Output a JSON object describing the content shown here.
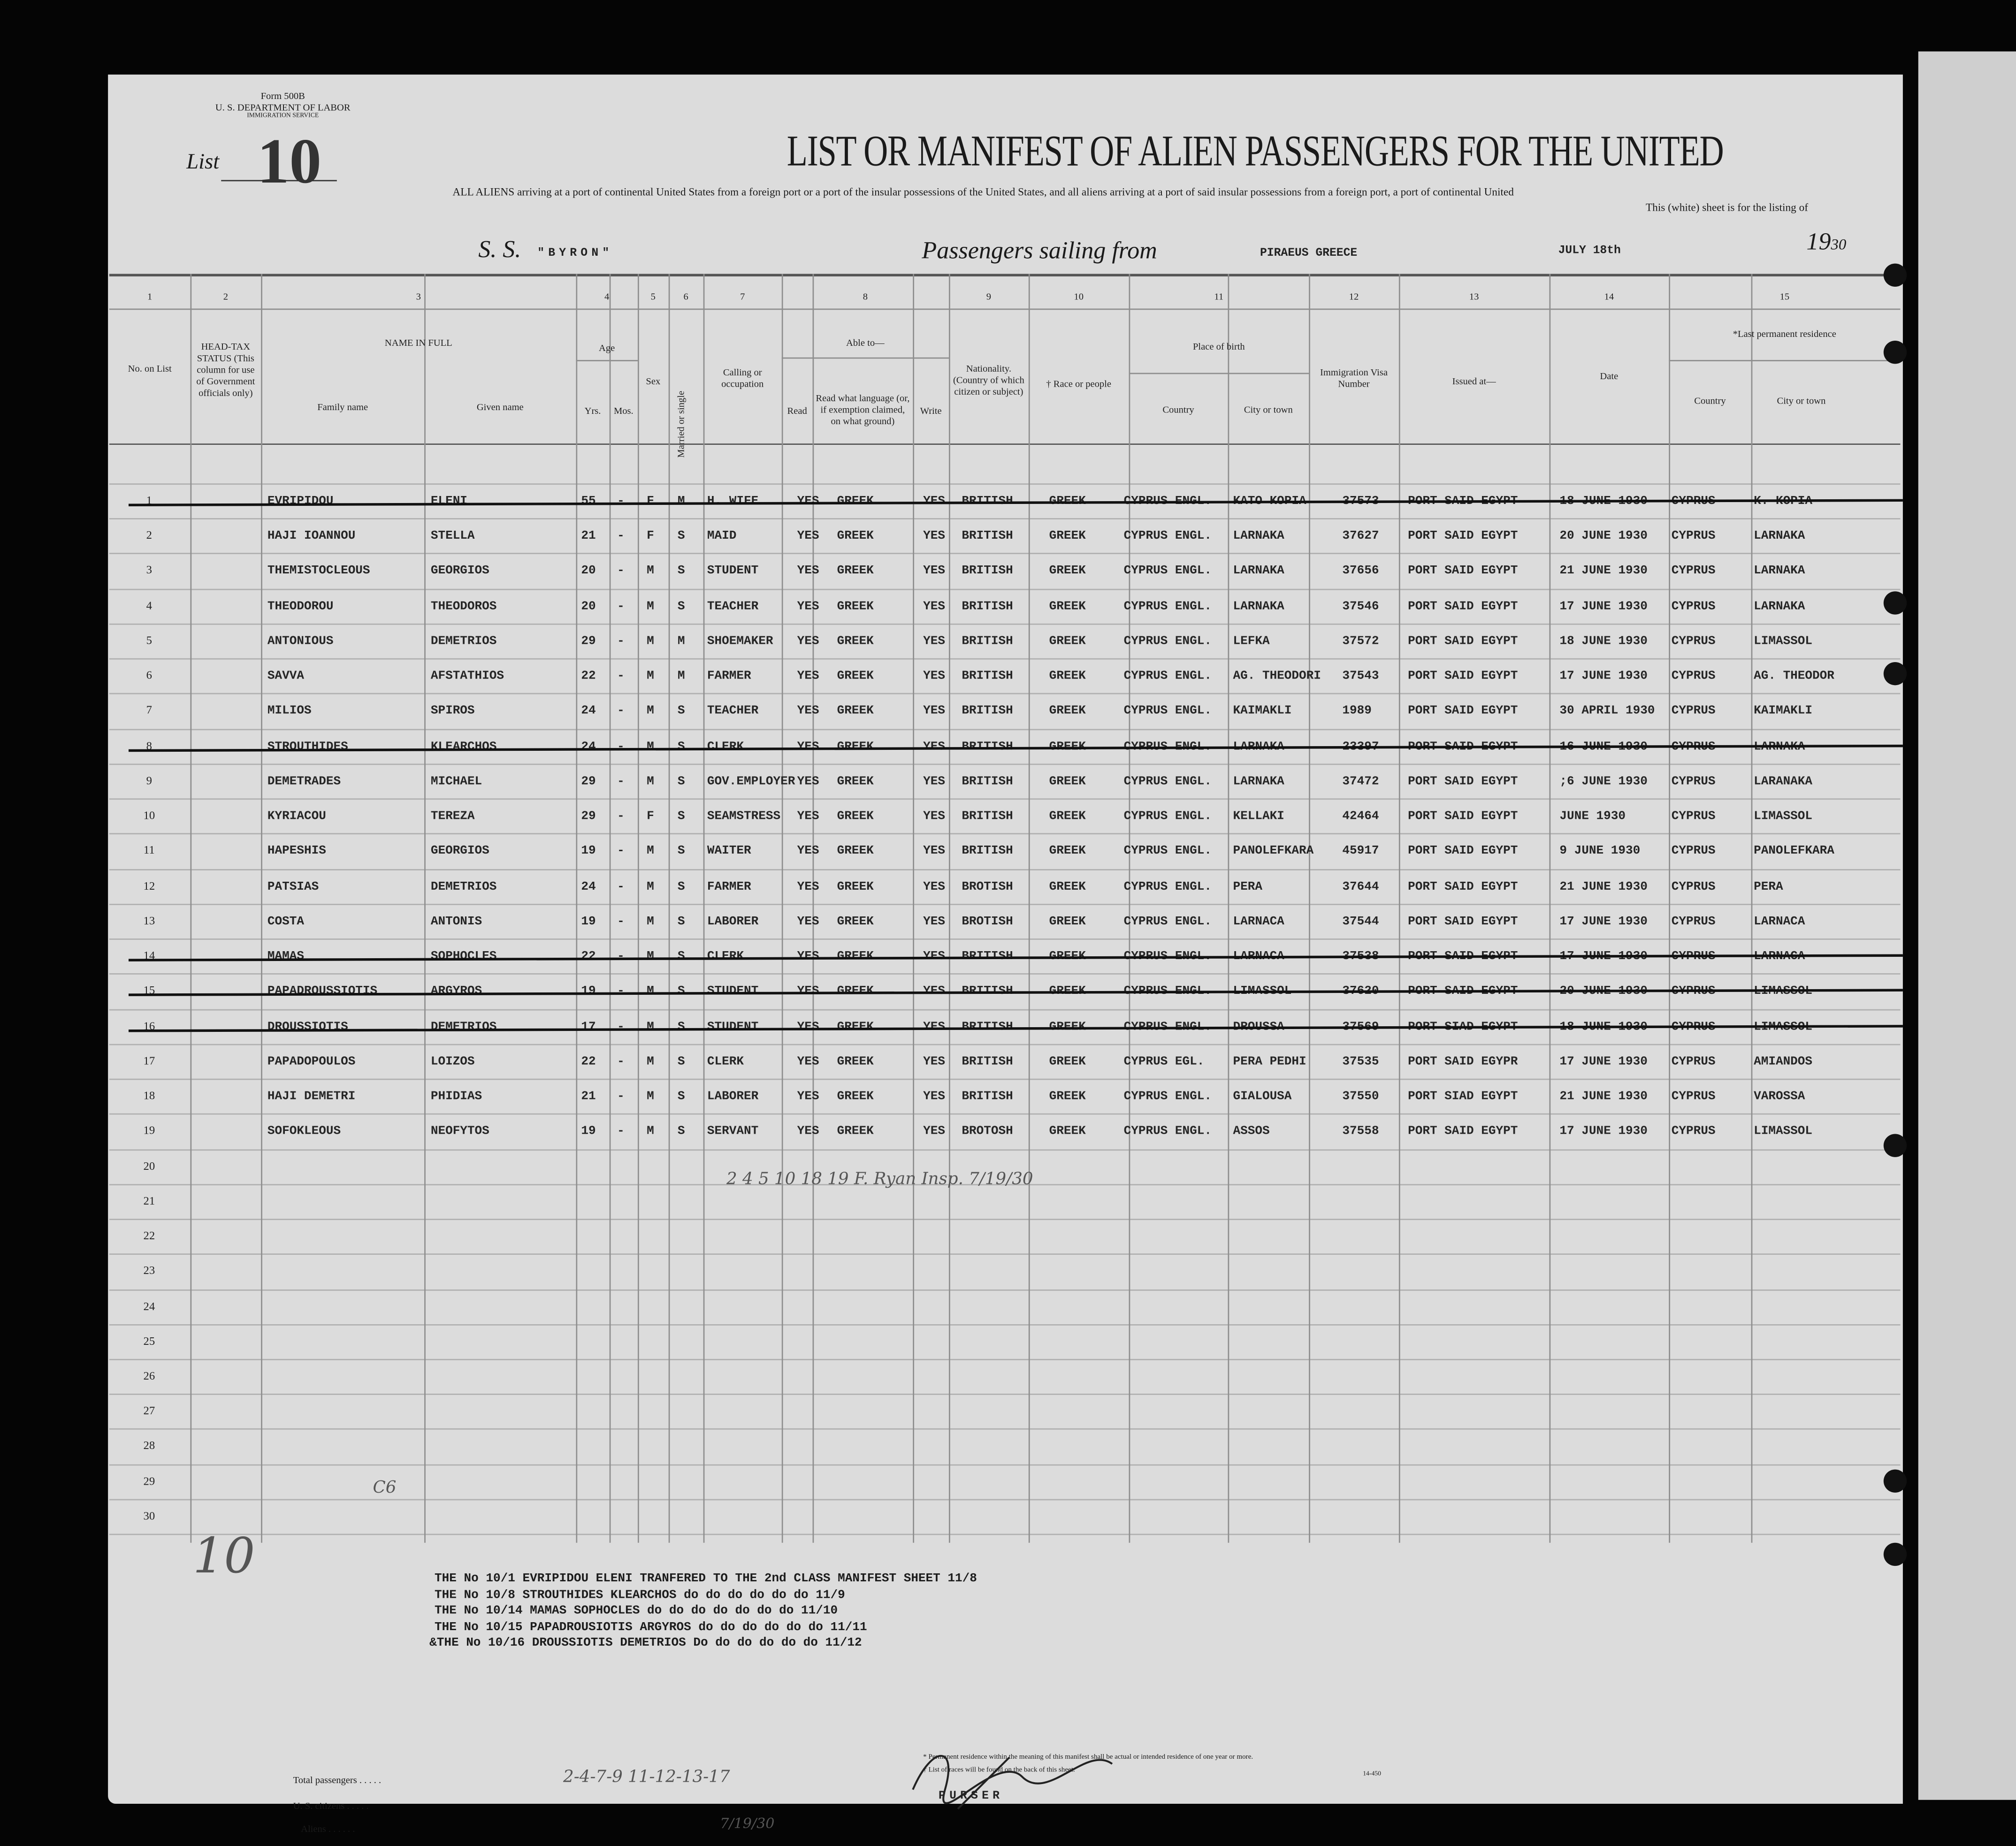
{
  "form": {
    "number": "Form 500B",
    "department": "U. S. DEPARTMENT OF LABOR",
    "service": "IMMIGRATION SERVICE"
  },
  "list": {
    "label": "List",
    "number": "10"
  },
  "title": "LIST OR MANIFEST OF ALIEN PASSENGERS FOR THE UNITED",
  "subtitle_1": "ALL ALIENS arriving at a port of continental United States from a foreign port or a port of the insular possessions of the United States, and all aliens arriving at a port of said insular possessions from a foreign port, a port of continental United",
  "subtitle_2": "This (white) sheet is for the listing of",
  "voyage": {
    "ss_label": "S. S.",
    "ship": "\"BYRON\"",
    "sailing_label": "Passengers sailing from",
    "port": "PIRAEUS GREECE",
    "date": "JULY 18th",
    "year_label": "19",
    "year_suffix": "30"
  },
  "columns": {
    "numbers": [
      "1",
      "2",
      "3",
      "4",
      "5",
      "6",
      "7",
      "8",
      "9",
      "10",
      "11",
      "12",
      "13",
      "14",
      "15"
    ],
    "no_on_list": "No. on List",
    "head_tax": "HEAD-TAX STATUS (This column for use of Government officials only)",
    "name_in_full": "NAME IN FULL",
    "family_name": "Family name",
    "given_name": "Given name",
    "age": "Age",
    "yrs": "Yrs.",
    "mos": "Mos.",
    "sex": "Sex",
    "married": "Married or single",
    "calling": "Calling or occupation",
    "able_to": "Able to—",
    "read": "Read",
    "language": "Read what language (or, if exemption claimed, on what ground)",
    "write": "Write",
    "nationality": "Nationality. (Country of which citizen or subject)",
    "race": "† Race or people",
    "place_of_birth": "Place of birth",
    "country": "Country",
    "city": "City or town",
    "visa": "Immigration Visa Number",
    "issued_at": "Issued at—",
    "date": "Date",
    "last_residence": "*Last permanent residence",
    "res_country": "Country",
    "res_city": "City or town"
  },
  "rows": [
    {
      "no": "1",
      "family": "EVRIPIDOU",
      "given": "ELENI",
      "yrs": "55",
      "mos": "-",
      "sex": "F",
      "marital": "M",
      "occupation": "H. WIFE",
      "read": "YES",
      "language": "GREEK",
      "write": "YES",
      "nationality": "BRITISH",
      "race": "GREEK",
      "country": "CYPRUS ENGL.",
      "city": "KATO KOPIA",
      "visa": "37573",
      "issued": "PORT SAID EGYPT",
      "date": "18 JUNE 1930",
      "res_country": "CYPRUS",
      "res_city": "K. KOPIA",
      "struck": true
    },
    {
      "no": "2",
      "family": "HAJI IOANNOU",
      "given": "STELLA",
      "yrs": "21",
      "mos": "-",
      "sex": "F",
      "marital": "S",
      "occupation": "MAID",
      "read": "YES",
      "language": "GREEK",
      "write": "YES",
      "nationality": "BRITISH",
      "race": "GREEK",
      "country": "CYPRUS ENGL.",
      "city": "LARNAKA",
      "visa": "37627",
      "issued": "PORT SAID EGYPT",
      "date": "20 JUNE 1930",
      "res_country": "CYPRUS",
      "res_city": "LARNAKA",
      "struck": false
    },
    {
      "no": "3",
      "family": "THEMISTOCLEOUS",
      "given": "GEORGIOS",
      "yrs": "20",
      "mos": "-",
      "sex": "M",
      "marital": "S",
      "occupation": "STUDENT",
      "read": "YES",
      "language": "GREEK",
      "write": "YES",
      "nationality": "BRITISH",
      "race": "GREEK",
      "country": "CYPRUS ENGL.",
      "city": "LARNAKA",
      "visa": "37656",
      "issued": "PORT SAID EGYPT",
      "date": "21 JUNE 1930",
      "res_country": "CYPRUS",
      "res_city": "LARNAKA",
      "struck": false
    },
    {
      "no": "4",
      "family": "THEODOROU",
      "given": "THEODOROS",
      "yrs": "20",
      "mos": "-",
      "sex": "M",
      "marital": "S",
      "occupation": "TEACHER",
      "read": "YES",
      "language": "GREEK",
      "write": "YES",
      "nationality": "BRITISH",
      "race": "GREEK",
      "country": "CYPRUS ENGL.",
      "city": "LARNAKA",
      "visa": "37546",
      "issued": "PORT SAID EGYPT",
      "date": "17 JUNE 1930",
      "res_country": "CYPRUS",
      "res_city": "LARNAKA",
      "struck": false
    },
    {
      "no": "5",
      "family": "ANTONIOUS",
      "given": "DEMETRIOS",
      "yrs": "29",
      "mos": "-",
      "sex": "M",
      "marital": "M",
      "occupation": "SHOEMAKER",
      "read": "YES",
      "language": "GREEK",
      "write": "YES",
      "nationality": "BRITISH",
      "race": "GREEK",
      "country": "CYPRUS ENGL.",
      "city": "LEFKA",
      "visa": "37572",
      "issued": "PORT SAID EGYPT",
      "date": "18 JUNE 1930",
      "res_country": "CYPRUS",
      "res_city": "LIMASSOL",
      "struck": false
    },
    {
      "no": "6",
      "family": "SAVVA",
      "given": "AFSTATHIOS",
      "yrs": "22",
      "mos": "-",
      "sex": "M",
      "marital": "M",
      "occupation": "FARMER",
      "read": "YES",
      "language": "GREEK",
      "write": "YES",
      "nationality": "BRITISH",
      "race": "GREEK",
      "country": "CYPRUS ENGL.",
      "city": "AG. THEODORI",
      "visa": "37543",
      "issued": "PORT SAID EGYPT",
      "date": "17 JUNE 1930",
      "res_country": "CYPRUS",
      "res_city": "AG. THEODOR",
      "struck": false
    },
    {
      "no": "7",
      "family": "MILIOS",
      "given": "SPIROS",
      "yrs": "24",
      "mos": "-",
      "sex": "M",
      "marital": "S",
      "occupation": "TEACHER",
      "read": "YES",
      "language": "GREEK",
      "write": "YES",
      "nationality": "BRITISH",
      "race": "GREEK",
      "country": "CYPRUS ENGL.",
      "city": "KAIMAKLI",
      "visa": "1989",
      "issued": "PORT SAID EGYPT",
      "date": "30 APRIL 1930",
      "res_country": "CYPRUS",
      "res_city": "KAIMAKLI",
      "struck": false
    },
    {
      "no": "8",
      "family": "STROUTHIDES",
      "given": "KLEARCHOS",
      "yrs": "24",
      "mos": "-",
      "sex": "M",
      "marital": "S",
      "occupation": "CLERK",
      "read": "YES",
      "language": "GREEK",
      "write": "YES",
      "nationality": "BRITISH",
      "race": "GREEK",
      "country": "CYPRUS ENGL.",
      "city": "LARNAKA",
      "visa": "23397",
      "issued": "PORT SAID EGYPT",
      "date": "16 JUNE 1930",
      "res_country": "CYPRUS",
      "res_city": "LARNAKA",
      "struck": true
    },
    {
      "no": "9",
      "family": "DEMETRADES",
      "given": "MICHAEL",
      "yrs": "29",
      "mos": "-",
      "sex": "M",
      "marital": "S",
      "occupation": "GOV.EMPLOYER",
      "read": "YES",
      "language": "GREEK",
      "write": "YES",
      "nationality": "BRITISH",
      "race": "GREEK",
      "country": "CYPRUS ENGL.",
      "city": "LARNAKA",
      "visa": "37472",
      "issued": "PORT SAID EGYPT",
      "date": ";6 JUNE 1930",
      "res_country": "CYPRUS",
      "res_city": "LARANAKA",
      "struck": false
    },
    {
      "no": "10",
      "family": "KYRIACOU",
      "given": "TEREZA",
      "yrs": "29",
      "mos": "-",
      "sex": "F",
      "marital": "S",
      "occupation": "SEAMSTRESS",
      "read": "YES",
      "language": "GREEK",
      "write": "YES",
      "nationality": "BRITISH",
      "race": "GREEK",
      "country": "CYPRUS ENGL.",
      "city": "KELLAKI",
      "visa": "42464",
      "issued": "PORT SAID EGYPT",
      "date": "JUNE 1930",
      "res_country": "CYPRUS",
      "res_city": "LIMASSOL",
      "struck": false
    },
    {
      "no": "11",
      "family": "HAPESHIS",
      "given": "GEORGIOS",
      "yrs": "19",
      "mos": "-",
      "sex": "M",
      "marital": "S",
      "occupation": "WAITER",
      "read": "YES",
      "language": "GREEK",
      "write": "YES",
      "nationality": "BRITISH",
      "race": "GREEK",
      "country": "CYPRUS ENGL.",
      "city": "PANOLEFKARA",
      "visa": "45917",
      "issued": "PORT SAID EGYPT",
      "date": "9 JUNE 1930",
      "res_country": "CYPRUS",
      "res_city": "PANOLEFKARA",
      "struck": false
    },
    {
      "no": "12",
      "family": "PATSIAS",
      "given": "DEMETRIOS",
      "yrs": "24",
      "mos": "-",
      "sex": "M",
      "marital": "S",
      "occupation": "FARMER",
      "read": "YES",
      "language": "GREEK",
      "write": "YES",
      "nationality": "BROTISH",
      "race": "GREEK",
      "country": "CYPRUS ENGL.",
      "city": "PERA",
      "visa": "37644",
      "issued": "PORT SAID EGYPT",
      "date": "21 JUNE 1930",
      "res_country": "CYPRUS",
      "res_city": "PERA",
      "struck": false
    },
    {
      "no": "13",
      "family": "COSTA",
      "given": "ANTONIS",
      "yrs": "19",
      "mos": "-",
      "sex": "M",
      "marital": "S",
      "occupation": "LABORER",
      "read": "YES",
      "language": "GREEK",
      "write": "YES",
      "nationality": "BROTISH",
      "race": "GREEK",
      "country": "CYPRUS ENGL.",
      "city": "LARNACA",
      "visa": "37544",
      "issued": "PORT SAID EGYPT",
      "date": "17 JUNE 1930",
      "res_country": "CYPRUS",
      "res_city": "LARNACA",
      "struck": false
    },
    {
      "no": "14",
      "family": "MAMAS",
      "given": "SOPHOCLES",
      "yrs": "22",
      "mos": "-",
      "sex": "M",
      "marital": "S",
      "occupation": "CLERK",
      "read": "YES",
      "language": "GREEK",
      "write": "YES",
      "nationality": "BRITISH",
      "race": "GREEK",
      "country": "CYPRUS ENGL.",
      "city": "LARNACA",
      "visa": "37538",
      "issued": "PORT SAID EGYPT",
      "date": "17 JUNE 1930",
      "res_country": "CYPRUS",
      "res_city": "LARNACA",
      "struck": true
    },
    {
      "no": "15",
      "family": "PAPADROUSSIOTIS",
      "given": "ARGYROS",
      "yrs": "19",
      "mos": "-",
      "sex": "M",
      "marital": "S",
      "occupation": "STUDENT",
      "read": "YES",
      "language": "GREEK",
      "write": "YES",
      "nationality": "BRITISH",
      "race": "GREEK",
      "country": "CYPRUS ENGL.",
      "city": "LIMASSOL",
      "visa": "37620",
      "issued": "PORT SAID EGYPT",
      "date": "20 JUNE 1930",
      "res_country": "CYPRUS",
      "res_city": "LIMASSOL",
      "struck": true
    },
    {
      "no": "16",
      "family": "DROUSSIOTIS",
      "given": "DEMETRIOS",
      "yrs": "17",
      "mos": "-",
      "sex": "M",
      "marital": "S",
      "occupation": "STUDENT",
      "read": "YES",
      "language": "GREEK",
      "write": "YES",
      "nationality": "BRITISH",
      "race": "GREEK",
      "country": "CYPRUS ENGL.",
      "city": "DROUSSA",
      "visa": "37569",
      "issued": "PORT SIAD EGYPT",
      "date": "18 JUNE 1930",
      "res_country": "CYPRUS",
      "res_city": "LIMASSOL",
      "struck": true
    },
    {
      "no": "17",
      "family": "PAPADOPOULOS",
      "given": "LOIZOS",
      "yrs": "22",
      "mos": "-",
      "sex": "M",
      "marital": "S",
      "occupation": "CLERK",
      "read": "YES",
      "language": "GREEK",
      "write": "YES",
      "nationality": "BRITISH",
      "race": "GREEK",
      "country": "CYPRUS EGL.",
      "city": "PERA PEDHI",
      "visa": "37535",
      "issued": "PORT SAID EGYPR",
      "date": "17 JUNE 1930",
      "res_country": "CYPRUS",
      "res_city": "AMIANDOS",
      "struck": false
    },
    {
      "no": "18",
      "family": "HAJI DEMETRI",
      "given": "PHIDIAS",
      "yrs": "21",
      "mos": "-",
      "sex": "M",
      "marital": "S",
      "occupation": "LABORER",
      "read": "YES",
      "language": "GREEK",
      "write": "YES",
      "nationality": "BRITISH",
      "race": "GREEK",
      "country": "CYPRUS ENGL.",
      "city": "GIALOUSA",
      "visa": "37550",
      "issued": "PORT SIAD EGYPT",
      "date": "21 JUNE 1930",
      "res_country": "CYPRUS",
      "res_city": "VAROSSA",
      "struck": false
    },
    {
      "no": "19",
      "family": "SOFOKLEOUS",
      "given": "NEOFYTOS",
      "yrs": "19",
      "mos": "-",
      "sex": "M",
      "marital": "S",
      "occupation": "SERVANT",
      "read": "YES",
      "language": "GREEK",
      "write": "YES",
      "nationality": "BROTOSH",
      "race": "GREEK",
      "country": "CYPRUS ENGL.",
      "city": "ASSOS",
      "visa": "37558",
      "issued": "PORT SAID EGYPT",
      "date": "17 JUNE 1930",
      "res_country": "CYPRUS",
      "res_city": "LIMASSOL",
      "struck": false
    }
  ],
  "empty_row_numbers": [
    "20",
    "21",
    "22",
    "23",
    "24",
    "25",
    "26",
    "27",
    "28",
    "29",
    "30"
  ],
  "handwritten": {
    "row20_note": "2 4 5 10 18 19  F. Ryan Insp. 7/19/30",
    "margin_list": "10",
    "margin_code": "C6",
    "totals_note": "2-4-7-9 11-12-13-17",
    "inspector_date": "7/19/30"
  },
  "transfer_notes": [
    "THE No 10/1 EVRIPIDOU ELENI TRANFERED TO THE 2nd CLASS MANIFEST SHEET 11/8",
    "THE No 10/8 STROUTHIDES KLEARCHOS do  do  do do  do     do  11/9",
    "THE No 10/14 MAMAS SOPHOCLES     do do  do  do do  do     do  11/10",
    "THE No 10/15 PAPADROUSIOTIS ARGYROS do do  do do  do     do  11/11",
    "&THE No 10/16 DROUSSIOTIS DEMETRIOS Do  do  do do  do     do  11/12"
  ],
  "footer": {
    "total_passengers": "Total passengers . . . . .",
    "us_citizens": "U. S. citizens . . . . .",
    "aliens": "Aliens . . . . . .",
    "residence_note": "* Permanent residence within the meaning of this manifest shall be actual or intended residence of one year or more.",
    "races_note": "† List of races will be found on the back of this sheet.",
    "purser": "PURSER",
    "form_code": "14-450"
  }
}
